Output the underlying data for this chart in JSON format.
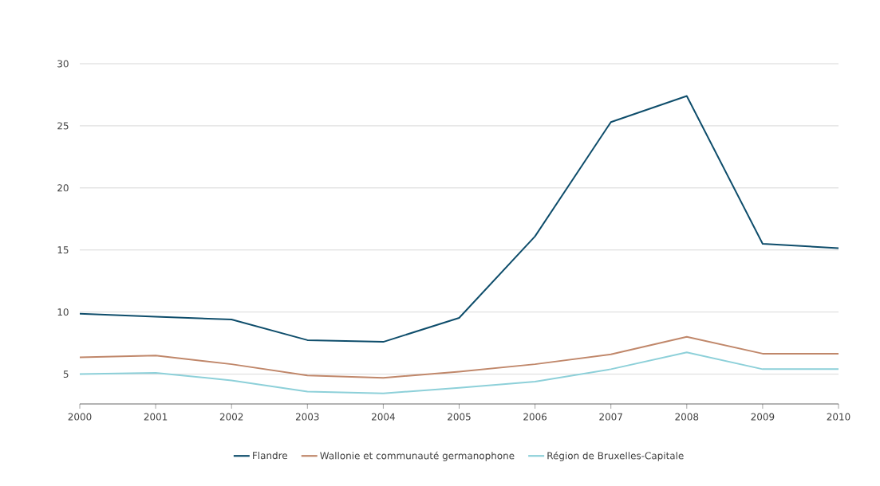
{
  "chart_data": {
    "type": "line",
    "x": [
      2000,
      2001,
      2002,
      2003,
      2004,
      2005,
      2006,
      2007,
      2008,
      2009,
      2010
    ],
    "series": [
      {
        "name": "Flandre",
        "color": "#0e4d6b",
        "values": [
          9.86,
          9.63,
          9.4,
          7.74,
          7.6,
          9.53,
          16.1,
          25.3,
          27.4,
          15.5,
          15.15
        ]
      },
      {
        "name": "Wallonie et communauté germanophone",
        "color": "#c0876a",
        "values": [
          6.35,
          6.5,
          5.8,
          4.9,
          4.7,
          5.2,
          5.8,
          6.6,
          8.0,
          6.65,
          6.65
        ]
      },
      {
        "name": "Région de Bruxelles-Capitale",
        "color": "#8dd0d9",
        "values": [
          5.0,
          5.1,
          4.5,
          3.6,
          3.45,
          3.9,
          4.4,
          5.4,
          6.75,
          5.4,
          5.4
        ]
      }
    ],
    "xlim": [
      2000,
      2010
    ],
    "ylim": [
      2.6,
      30
    ],
    "xticks": [
      2000,
      2001,
      2002,
      2003,
      2004,
      2005,
      2006,
      2007,
      2008,
      2009,
      2010
    ],
    "yticks": [
      5,
      10,
      15,
      20,
      25,
      30
    ],
    "grid": "y",
    "legend": "bottom",
    "marker": "none",
    "line_style": "solid"
  }
}
